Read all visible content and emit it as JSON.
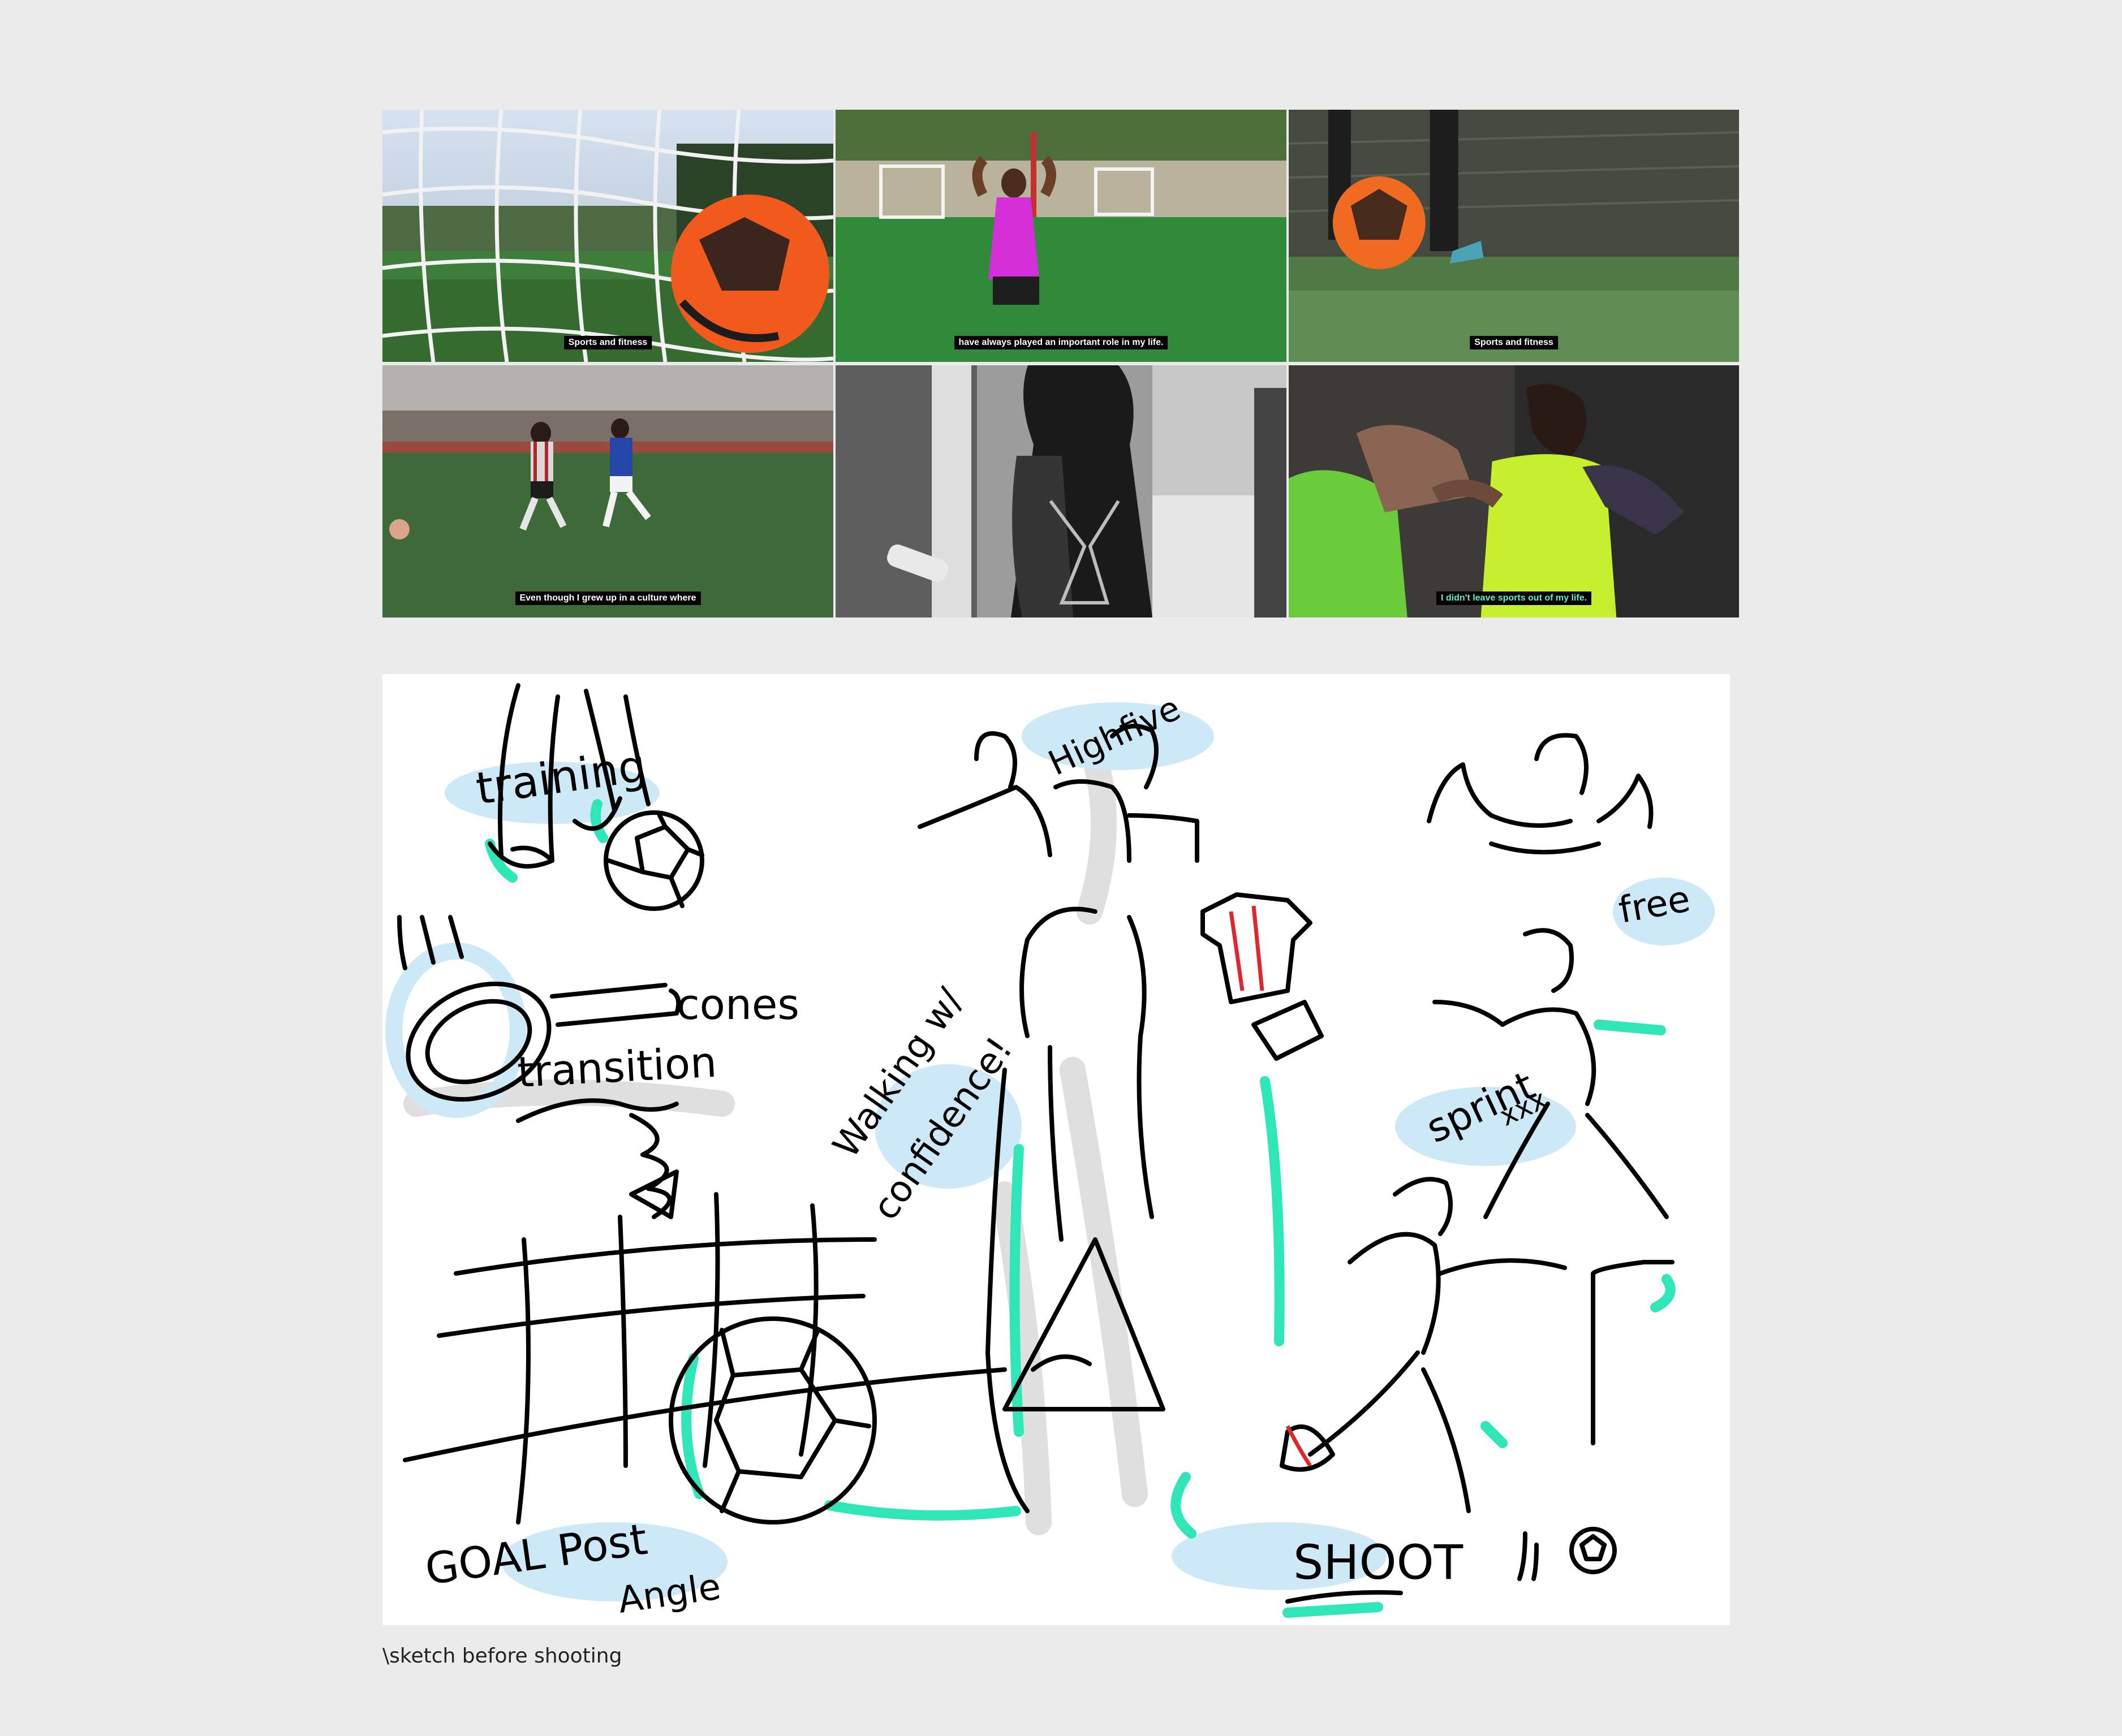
{
  "frames": [
    {
      "subtitle": "Sports and fitness",
      "accent": false
    },
    {
      "subtitle": "have always played an important role in my life.",
      "accent": false
    },
    {
      "subtitle": "Sports and fitness",
      "accent": false
    },
    {
      "subtitle": "Even though I grew up in a culture where",
      "accent": false
    },
    {
      "subtitle": "",
      "accent": false
    },
    {
      "subtitle": "I didn't leave sports out of my life.",
      "accent": true
    }
  ],
  "sketch": {
    "labels": {
      "training": "training",
      "cones": "cones",
      "transition": "transition",
      "walking": "Walking w/",
      "confidence": "confidence!",
      "highfive": "Highfive",
      "free": "free",
      "sprint": "sprint",
      "sprint_marks": "xxx",
      "goalpost": "GOAL Post",
      "angle": "Angle",
      "shoot": "SHOOT"
    },
    "colors": {
      "ink": "#000000",
      "highlight_blue": "#cde9f7",
      "highlight_green": "#2fe6b8",
      "shadow_grey": "#dcdcdc",
      "accent_red": "#e0262e"
    }
  },
  "caption": "\\sketch before shooting"
}
